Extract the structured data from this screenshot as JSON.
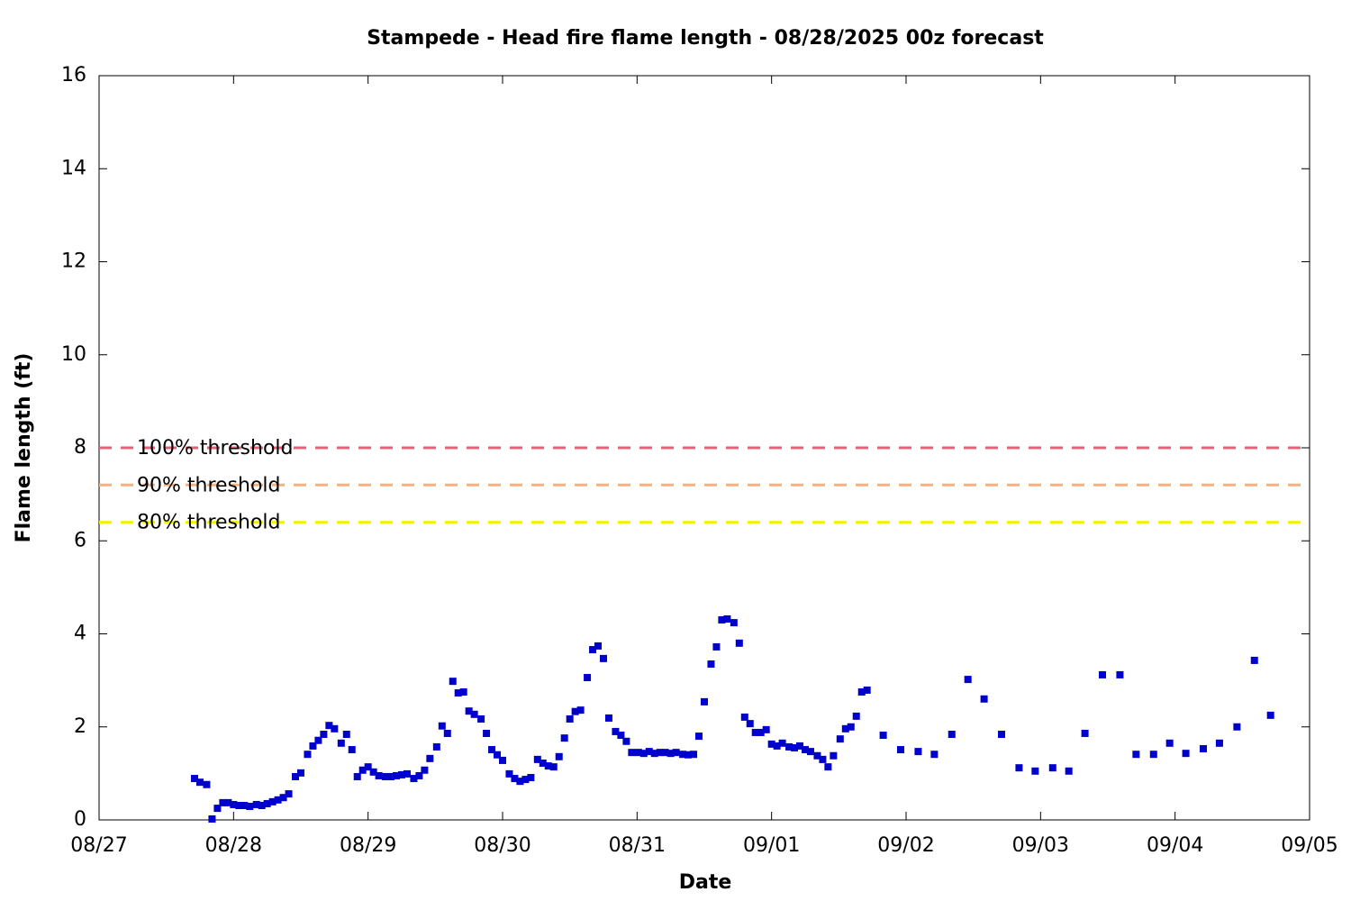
{
  "chart_data": {
    "type": "scatter",
    "title": "Stampede - Head fire flame length - 08/28/2025 00z forecast",
    "xlabel": "Date",
    "ylabel": "Flame length (ft)",
    "color": "#0000cc",
    "xlim": [
      0,
      9
    ],
    "xticks": [
      {
        "value": 0,
        "label": "08/27"
      },
      {
        "value": 1,
        "label": "08/28"
      },
      {
        "value": 2,
        "label": "08/29"
      },
      {
        "value": 3,
        "label": "08/30"
      },
      {
        "value": 4,
        "label": "08/31"
      },
      {
        "value": 5,
        "label": "09/01"
      },
      {
        "value": 6,
        "label": "09/02"
      },
      {
        "value": 7,
        "label": "09/03"
      },
      {
        "value": 8,
        "label": "09/04"
      },
      {
        "value": 9,
        "label": "09/05"
      }
    ],
    "ylim": [
      0,
      16
    ],
    "yticks": [
      0,
      2,
      4,
      6,
      8,
      10,
      12,
      14,
      16
    ],
    "thresholds": [
      {
        "label": "100% threshold",
        "value": 8,
        "color": "#e06377"
      },
      {
        "label": "90% threshold",
        "value": 7.2,
        "color": "#f5b27e"
      },
      {
        "label": "80% threshold",
        "value": 6.4,
        "color": "#f2f200"
      }
    ],
    "x": [
      0.71,
      0.75,
      0.8,
      0.84,
      0.88,
      0.92,
      0.96,
      1.0,
      1.04,
      1.08,
      1.12,
      1.17,
      1.21,
      1.25,
      1.29,
      1.33,
      1.37,
      1.41,
      1.46,
      1.5,
      1.55,
      1.59,
      1.63,
      1.67,
      1.71,
      1.75,
      1.8,
      1.84,
      1.88,
      1.92,
      1.96,
      2.0,
      2.04,
      2.08,
      2.13,
      2.17,
      2.21,
      2.25,
      2.29,
      2.34,
      2.38,
      2.42,
      2.46,
      2.51,
      2.55,
      2.59,
      2.63,
      2.67,
      2.71,
      2.75,
      2.79,
      2.84,
      2.88,
      2.92,
      2.96,
      3.0,
      3.05,
      3.09,
      3.13,
      3.17,
      3.21,
      3.26,
      3.3,
      3.34,
      3.38,
      3.42,
      3.46,
      3.5,
      3.54,
      3.58,
      3.63,
      3.67,
      3.71,
      3.75,
      3.79,
      3.84,
      3.88,
      3.92,
      3.96,
      4.01,
      4.05,
      4.09,
      4.13,
      4.17,
      4.21,
      4.25,
      4.29,
      4.34,
      4.38,
      4.42,
      4.46,
      4.5,
      4.55,
      4.59,
      4.63,
      4.67,
      4.72,
      4.76,
      4.8,
      4.84,
      4.88,
      4.92,
      4.96,
      5.0,
      5.04,
      5.08,
      5.13,
      5.17,
      5.21,
      5.25,
      5.29,
      5.34,
      5.38,
      5.42,
      5.46,
      5.51,
      5.55,
      5.59,
      5.63,
      5.67,
      5.71,
      5.83,
      5.96,
      6.09,
      6.21,
      6.34,
      6.46,
      6.58,
      6.71,
      6.84,
      6.96,
      7.09,
      7.21,
      7.33,
      7.46,
      7.59,
      7.71,
      7.84,
      7.96,
      8.08,
      8.21,
      8.33,
      8.46,
      8.59,
      8.71
    ],
    "values": [
      0.89,
      0.81,
      0.76,
      0.02,
      0.25,
      0.37,
      0.37,
      0.33,
      0.31,
      0.31,
      0.29,
      0.33,
      0.31,
      0.35,
      0.39,
      0.43,
      0.48,
      0.56,
      0.93,
      1.01,
      1.41,
      1.59,
      1.71,
      1.84,
      2.03,
      1.96,
      1.65,
      1.84,
      1.51,
      0.93,
      1.07,
      1.14,
      1.03,
      0.95,
      0.93,
      0.93,
      0.95,
      0.97,
      0.99,
      0.89,
      0.95,
      1.07,
      1.32,
      1.57,
      2.02,
      1.86,
      2.98,
      2.73,
      2.75,
      2.34,
      2.27,
      2.17,
      1.86,
      1.51,
      1.4,
      1.28,
      0.99,
      0.89,
      0.83,
      0.87,
      0.91,
      1.3,
      1.22,
      1.16,
      1.14,
      1.36,
      1.76,
      2.17,
      2.33,
      2.36,
      3.06,
      3.66,
      3.74,
      3.47,
      2.19,
      1.9,
      1.82,
      1.69,
      1.45,
      1.45,
      1.43,
      1.47,
      1.43,
      1.45,
      1.45,
      1.43,
      1.45,
      1.41,
      1.4,
      1.41,
      1.8,
      2.54,
      3.35,
      3.72,
      4.3,
      4.32,
      4.24,
      3.8,
      2.21,
      2.07,
      1.88,
      1.88,
      1.94,
      1.63,
      1.59,
      1.65,
      1.57,
      1.55,
      1.59,
      1.51,
      1.47,
      1.38,
      1.3,
      1.14,
      1.38,
      1.74,
      1.96,
      2.0,
      2.23,
      2.75,
      2.79,
      1.82,
      1.51,
      1.47,
      1.41,
      1.84,
      3.02,
      2.6,
      1.84,
      1.12,
      1.05,
      1.12,
      1.05,
      1.86,
      3.12,
      3.12,
      1.41,
      1.41,
      1.65,
      1.43,
      1.53,
      1.65,
      2.0,
      3.43,
      2.25
    ]
  }
}
